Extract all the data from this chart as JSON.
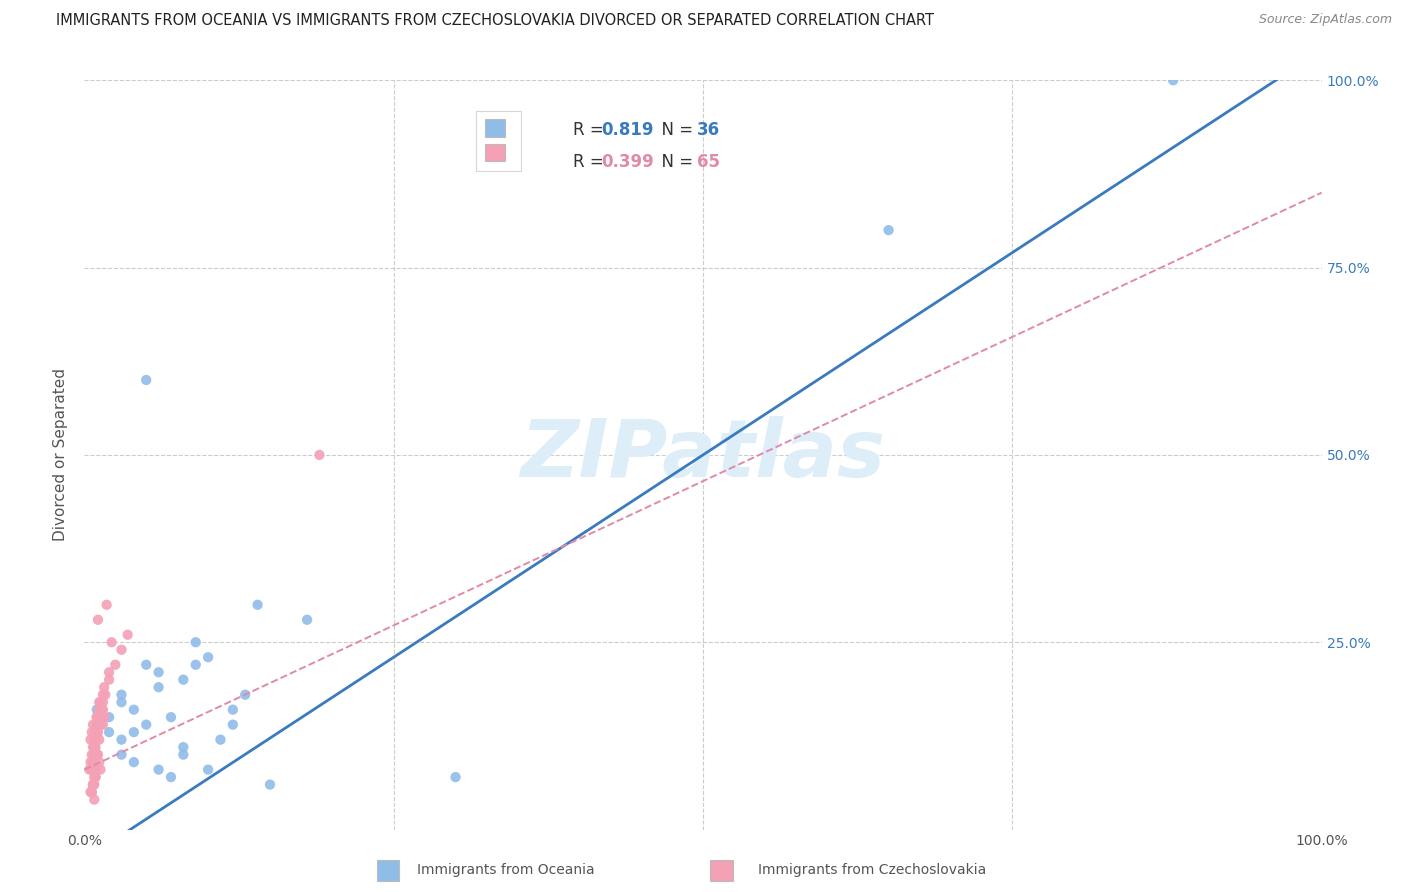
{
  "title": "IMMIGRANTS FROM OCEANIA VS IMMIGRANTS FROM CZECHOSLOVAKIA DIVORCED OR SEPARATED CORRELATION CHART",
  "source": "Source: ZipAtlas.com",
  "ylabel": "Divorced or Separated",
  "xlim": [
    0,
    1
  ],
  "ylim": [
    0,
    1
  ],
  "blue_R": 0.819,
  "blue_N": 36,
  "pink_R": 0.399,
  "pink_N": 65,
  "blue_color": "#90bce8",
  "pink_color": "#f4a0b5",
  "blue_line_color": "#3a7abf",
  "pink_line_color": "#e08aaa",
  "watermark": "ZIPatlas",
  "watermark_color": "#ddeef8",
  "background_color": "#ffffff",
  "grid_color": "#cccccc",
  "blue_line_x": [
    0.0,
    1.0
  ],
  "blue_line_y": [
    -0.04,
    1.04
  ],
  "pink_line_x": [
    0.0,
    1.0
  ],
  "pink_line_y": [
    0.08,
    0.85
  ],
  "blue_scatter_x": [
    0.02,
    0.03,
    0.05,
    0.06,
    0.08,
    0.04,
    0.03,
    0.05,
    0.07,
    0.06,
    0.09,
    0.1,
    0.13,
    0.12,
    0.14,
    0.18,
    0.08,
    0.06,
    0.04,
    0.03,
    0.02,
    0.01,
    0.05,
    0.09,
    0.12,
    0.3,
    0.04,
    0.07,
    0.03,
    0.08,
    0.11,
    0.1,
    0.15,
    0.88,
    0.65,
    0.01
  ],
  "blue_scatter_y": [
    0.13,
    0.17,
    0.22,
    0.19,
    0.2,
    0.16,
    0.12,
    0.14,
    0.15,
    0.21,
    0.22,
    0.23,
    0.18,
    0.16,
    0.3,
    0.28,
    0.1,
    0.08,
    0.13,
    0.18,
    0.15,
    0.16,
    0.6,
    0.25,
    0.14,
    0.07,
    0.09,
    0.07,
    0.1,
    0.11,
    0.12,
    0.08,
    0.06,
    1.0,
    0.8,
    0.14
  ],
  "pink_scatter_x": [
    0.005,
    0.01,
    0.01,
    0.008,
    0.012,
    0.015,
    0.008,
    0.006,
    0.009,
    0.013,
    0.016,
    0.007,
    0.011,
    0.014,
    0.009,
    0.005,
    0.007,
    0.01,
    0.012,
    0.008,
    0.015,
    0.02,
    0.025,
    0.03,
    0.035,
    0.015,
    0.01,
    0.012,
    0.008,
    0.007,
    0.018,
    0.022,
    0.016,
    0.009,
    0.006,
    0.011,
    0.014,
    0.017,
    0.013,
    0.008,
    0.19,
    0.006,
    0.004,
    0.009,
    0.012,
    0.007,
    0.005,
    0.01,
    0.015,
    0.008,
    0.011,
    0.006,
    0.013,
    0.009,
    0.007,
    0.02,
    0.016,
    0.012,
    0.008,
    0.01,
    0.006,
    0.008,
    0.009,
    0.011,
    0.007
  ],
  "pink_scatter_y": [
    0.12,
    0.13,
    0.15,
    0.11,
    0.14,
    0.16,
    0.1,
    0.13,
    0.12,
    0.17,
    0.15,
    0.11,
    0.14,
    0.16,
    0.13,
    0.09,
    0.14,
    0.15,
    0.16,
    0.12,
    0.18,
    0.2,
    0.22,
    0.24,
    0.26,
    0.14,
    0.13,
    0.17,
    0.1,
    0.09,
    0.3,
    0.25,
    0.19,
    0.11,
    0.08,
    0.13,
    0.16,
    0.18,
    0.14,
    0.11,
    0.5,
    0.1,
    0.08,
    0.07,
    0.09,
    0.06,
    0.05,
    0.13,
    0.17,
    0.06,
    0.28,
    0.05,
    0.08,
    0.07,
    0.06,
    0.21,
    0.15,
    0.12,
    0.04,
    0.1,
    0.05,
    0.07,
    0.08,
    0.1,
    0.06
  ]
}
